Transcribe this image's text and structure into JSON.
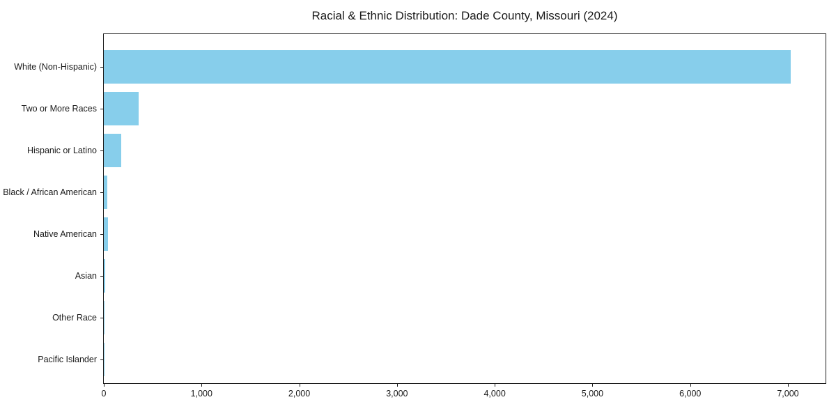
{
  "title": "Racial & Ethnic Distribution: Dade County, Missouri (2024)",
  "chart_data": {
    "type": "bar",
    "orientation": "horizontal",
    "title": "Racial & Ethnic Distribution: Dade County, Missouri (2024)",
    "xlabel": "",
    "ylabel": "",
    "categories": [
      "White (Non-Hispanic)",
      "Two or More Races",
      "Hispanic or Latino",
      "Black / African American",
      "Native American",
      "Asian",
      "Other Race",
      "Pacific Islander"
    ],
    "values": [
      7032,
      356,
      178,
      36,
      43,
      14,
      6,
      2
    ],
    "xlim": [
      0,
      7385
    ],
    "x_ticks": [
      0,
      1000,
      2000,
      3000,
      4000,
      5000,
      6000,
      7000
    ],
    "x_tick_labels": [
      "0",
      "1,000",
      "2,000",
      "3,000",
      "4,000",
      "5,000",
      "6,000",
      "7,000"
    ],
    "bar_color": "#87CEEB",
    "frame_color": "#1a1a1a",
    "grid": false,
    "legend": null
  }
}
